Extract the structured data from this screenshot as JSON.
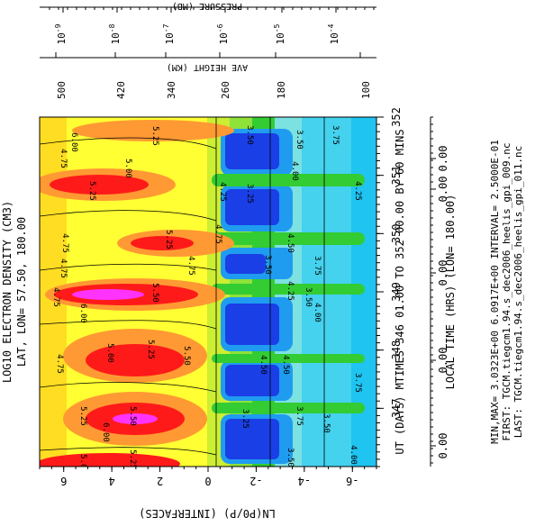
{
  "chart_data": {
    "type": "heatmap",
    "title": "LOG10 ELECTRON DENSITY (CM3)",
    "subtitle": "LAT, LON= 57.50, 180.00",
    "xlabel": "UT (DAYS) MTIMES 346 01.00 TO 352 00.00 BY 60 MINS",
    "xlabel2": "LOCAL TIME (HRS) (LON= 180.00)",
    "ylabel": "LN(P0/P) (INTERFACES)",
    "top_axis1_label": "AVE HEIGHT (KM)",
    "top_axis2_label": "PRESSURE (MB)",
    "footer": [
      "MIN,MAX= 3.0323E+00  6.0917E+00 INTERVAL= 2.5000E-01",
      "FIRST: TGCM.tiegcm1.94.s_dec2006_heelis_gpi_009.nc",
      "LAST: TGCM.tiegcm1.94.s_dec2006_heelis_gpi_011.nc"
    ],
    "xlim": [
      346.0,
      352.0
    ],
    "ylim": [
      -7,
      7
    ],
    "ut_ticks": [
      "347",
      "348",
      "349",
      "350",
      "351",
      "352"
    ],
    "lt_ticks": [
      "0.00",
      "0.00",
      "0.00",
      "0.00",
      "0.00",
      "0.00"
    ],
    "lnp_ticks": [
      "6",
      "4",
      "2",
      "0",
      "-2",
      "-4",
      "-6"
    ],
    "height_ticks": [
      "500",
      "420",
      "340",
      "260",
      "180",
      "100"
    ],
    "pressure_ticks": [
      {
        "base": "10",
        "exp": "-9"
      },
      {
        "base": "10",
        "exp": "-8"
      },
      {
        "base": "10",
        "exp": "-7"
      },
      {
        "base": "10",
        "exp": "-6"
      },
      {
        "base": "10",
        "exp": "-5"
      },
      {
        "base": "10",
        "exp": "-4"
      }
    ],
    "min": 3.0323,
    "max": 6.0917,
    "interval": 0.25,
    "contour_labels": [
      "3.25",
      "3.50",
      "3.75",
      "4.00",
      "4.25",
      "4.50",
      "4.75",
      "5.00",
      "5.25",
      "5.50",
      "6.00"
    ],
    "colors": {
      "lt3.25": "#0000cc",
      "3.25": "#1a3fe6",
      "3.50": "#1f9cf0",
      "3.75": "#44d2ee",
      "4.00": "#7ce1e1",
      "4.25": "#33cc33",
      "4.50": "#8ee23a",
      "4.75": "#ccee33",
      "5.00": "#ffff33",
      "5.25": "#ff9933",
      "5.50": "#ff1a1a",
      "6.00": "#ff33ff"
    }
  }
}
